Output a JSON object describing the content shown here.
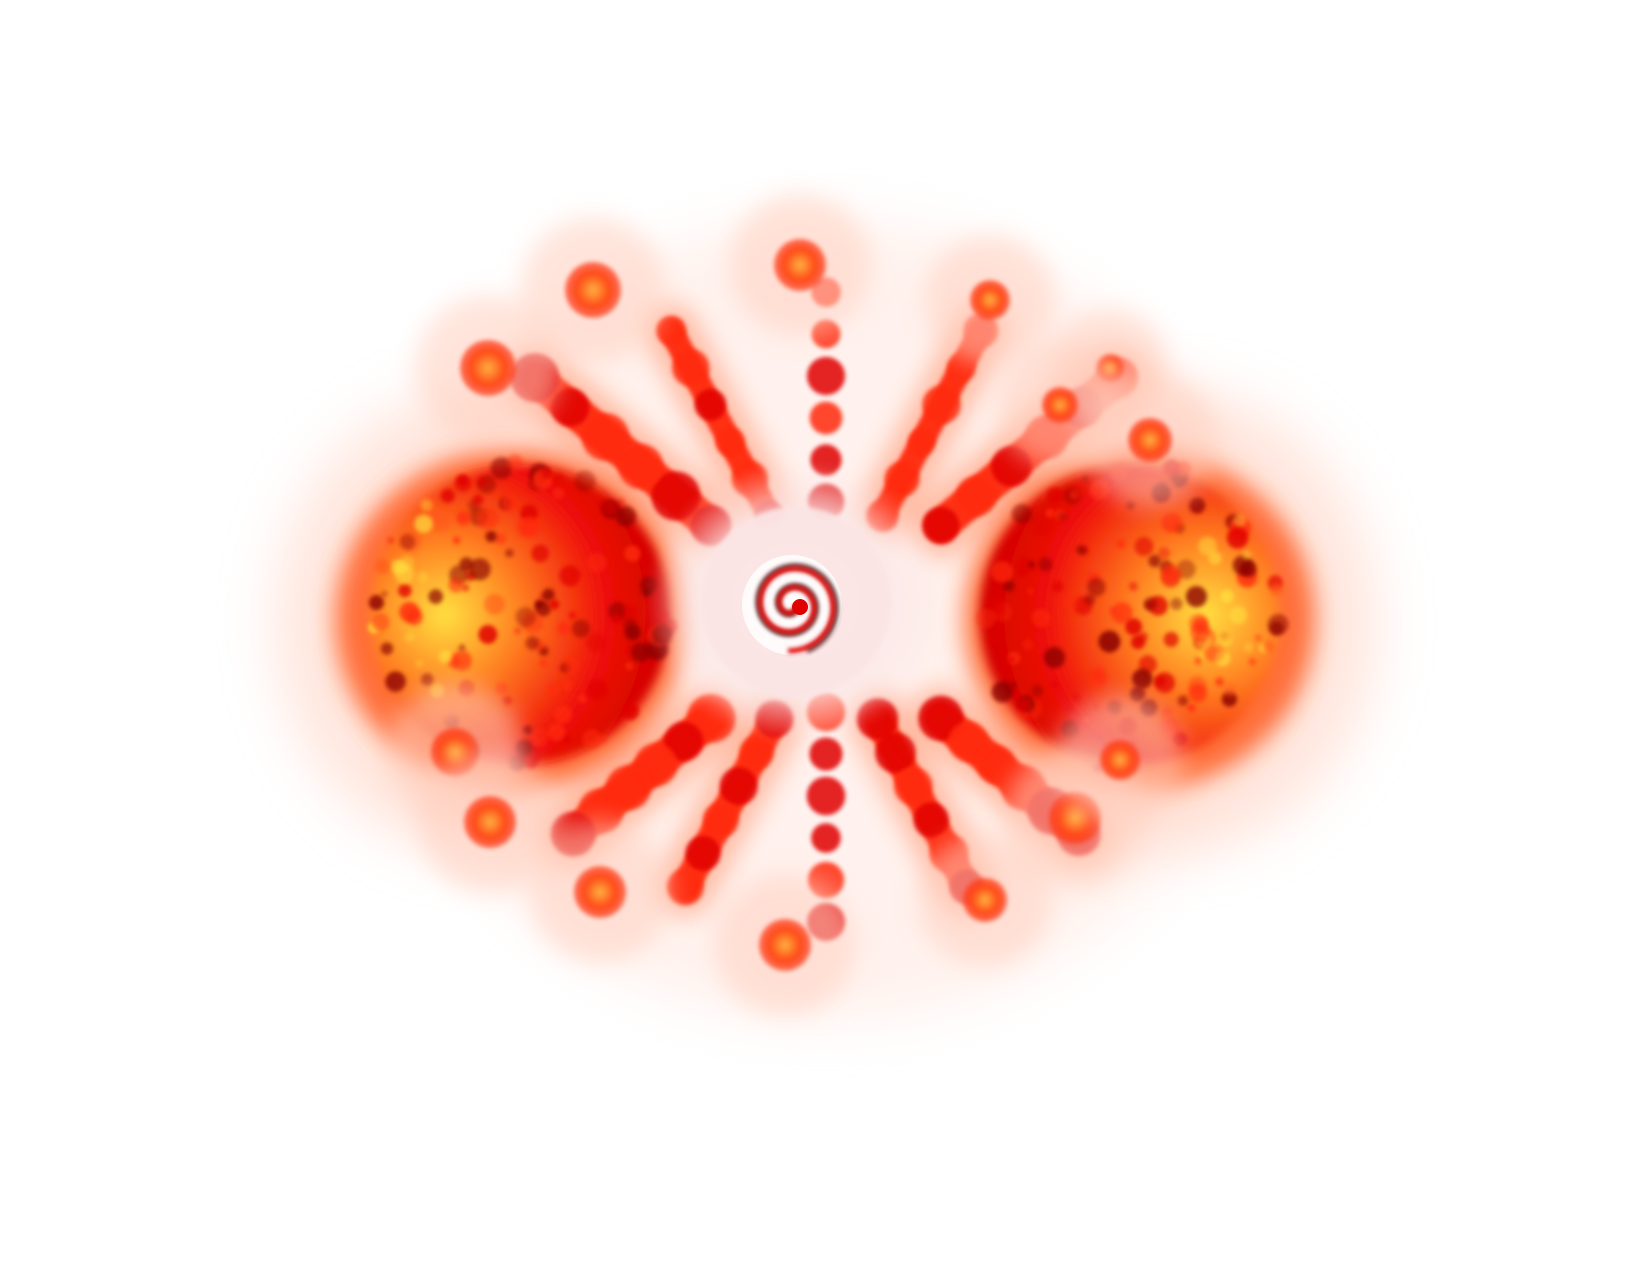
{
  "image": {
    "subject": "radial-burst",
    "background_color": "#ffffff",
    "palette": {
      "glow": "#ffd0c0",
      "outer": "#ff5a1e",
      "mid": "#ff2a10",
      "core": "#e00000",
      "dark": "#8a0000",
      "highlight": "#ffe040",
      "center_disc": "#fbe4e4",
      "spiral": "#301010"
    }
  }
}
